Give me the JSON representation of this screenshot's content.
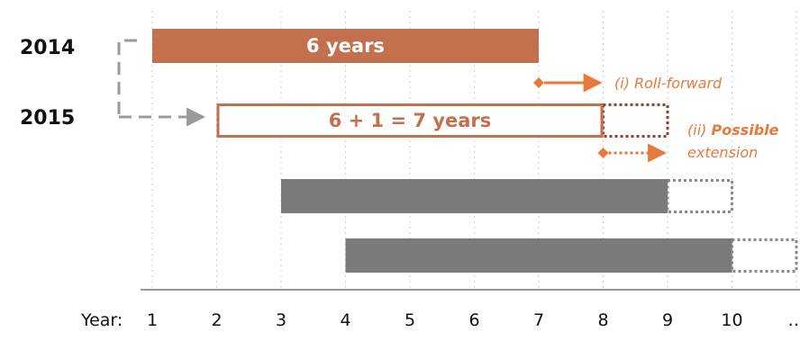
{
  "colors": {
    "accent": "#c3704f",
    "accent_dark": "#9a3d2e",
    "arrow": "#e8793d",
    "note": "#e8793d",
    "gray_bar": "#7a7a7c",
    "dotted_gray": "#8a8a8a",
    "connector": "#9a9a9a",
    "grid": "#cfcfcf"
  },
  "rows": [
    {
      "label": "2014"
    },
    {
      "label": "2015"
    }
  ],
  "bars": [
    {
      "start": 1,
      "end": 7,
      "style": "filled-accent",
      "label": "6 years",
      "extension_end": null
    },
    {
      "start": 2,
      "end": 8,
      "style": "outline-accent",
      "label": "6 + 1 = 7 years",
      "extension_end": 9
    },
    {
      "start": 3,
      "end": 9,
      "style": "filled-gray",
      "label": "",
      "extension_end": 10
    },
    {
      "start": 4,
      "end": 10,
      "style": "filled-gray",
      "label": "",
      "extension_end": 11
    }
  ],
  "annotations": {
    "roll_forward": {
      "from": 7,
      "to": 8,
      "text": "(i) Roll-forward"
    },
    "extension": {
      "from": 8,
      "to": 9,
      "text_prefix": "(ii) ",
      "text_bold": "Possible",
      "text_line2": "extension"
    }
  },
  "axis": {
    "prefix": "Year:",
    "ticks": [
      "1",
      "2",
      "3",
      "4",
      "5",
      "6",
      "7",
      "8",
      "9",
      "10",
      "…"
    ]
  }
}
